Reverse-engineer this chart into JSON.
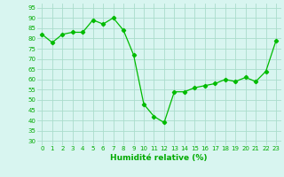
{
  "x": [
    0,
    1,
    2,
    3,
    4,
    5,
    6,
    7,
    8,
    9,
    10,
    11,
    12,
    13,
    14,
    15,
    16,
    17,
    18,
    19,
    20,
    21,
    22,
    23
  ],
  "y": [
    82,
    78,
    82,
    83,
    83,
    89,
    87,
    90,
    84,
    72,
    48,
    42,
    39,
    54,
    54,
    56,
    57,
    58,
    60,
    59,
    61,
    59,
    64,
    79
  ],
  "line_color": "#00bb00",
  "marker": "D",
  "marker_size": 2.2,
  "bg_color": "#d8f5f0",
  "grid_color": "#aaddcc",
  "xlabel": "Humidité relative (%)",
  "xlabel_color": "#00aa00",
  "xlabel_fontsize": 6.5,
  "ylabel_ticks": [
    30,
    35,
    40,
    45,
    50,
    55,
    60,
    65,
    70,
    75,
    80,
    85,
    90,
    95
  ],
  "ylim": [
    28,
    97
  ],
  "xlim": [
    -0.5,
    23.5
  ],
  "tick_color": "#00aa00",
  "tick_fontsize": 5.0
}
